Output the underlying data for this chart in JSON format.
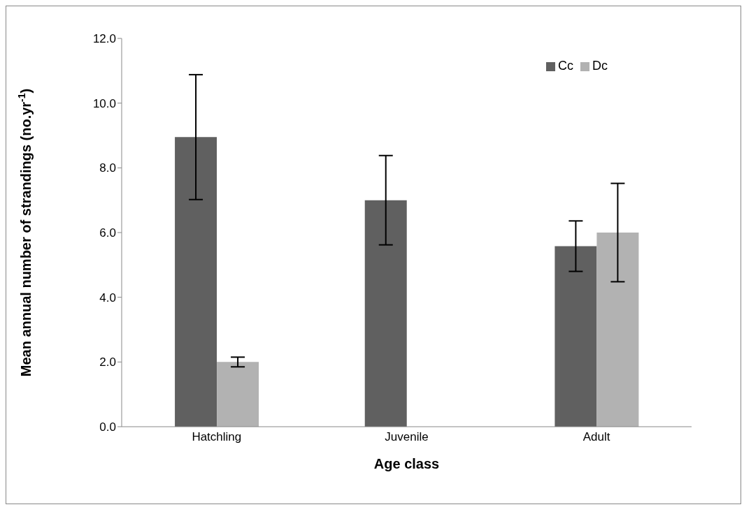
{
  "chart_data": {
    "type": "bar",
    "xlabel": "Age class",
    "ylabel": "Mean annual number of strandings (no.yr$^{-1}$)",
    "categories": [
      "Hatchling",
      "Juvenile",
      "Adult"
    ],
    "series": [
      {
        "name": "Cc",
        "color": "#606060",
        "values": [
          8.95,
          7.0,
          5.58
        ],
        "errors": [
          1.93,
          1.38,
          0.78
        ]
      },
      {
        "name": "Dc",
        "color": "#b2b2b2",
        "values": [
          2.0,
          null,
          6.0
        ],
        "errors": [
          0.15,
          null,
          1.52
        ]
      }
    ],
    "ylim": [
      0,
      12
    ],
    "yticks": [
      {
        "value": 0,
        "label": "0.0"
      },
      {
        "value": 2,
        "label": "2.0"
      },
      {
        "value": 4,
        "label": "4.0"
      },
      {
        "value": 6,
        "label": "6.0"
      },
      {
        "value": 8,
        "label": "8.0"
      },
      {
        "value": 10,
        "label": "10.0"
      },
      {
        "value": 12,
        "label": "12.0"
      }
    ],
    "grid": false,
    "legend": "top right"
  }
}
